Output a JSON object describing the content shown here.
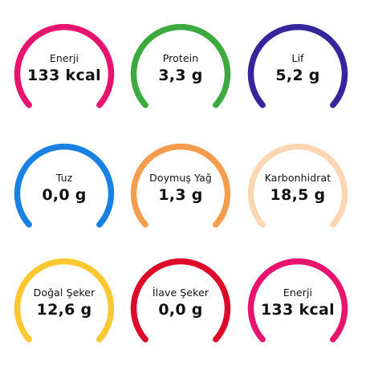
{
  "nutrients": [
    {
      "label": "Enerji",
      "value": "133 kcal",
      "color": "#e8136e"
    },
    {
      "label": "Protein",
      "value": "3,3 g",
      "color": "#3daa3f"
    },
    {
      "label": "Lif",
      "value": "5,2 g",
      "color": "#35279b"
    },
    {
      "label": "Tuz",
      "value": "0,0 g",
      "color": "#1981e2"
    },
    {
      "label": "Doymuş Yağ",
      "value": "1,3 g",
      "color": "#f59c4e"
    },
    {
      "label": "Karbonhidrat",
      "value": "18,5 g",
      "color": "#fcd6b3"
    },
    {
      "label": "Doğal Şeker",
      "value": "12,6 g",
      "color": "#fbc833"
    },
    {
      "label": "İlave Şeker",
      "value": "0,0 g",
      "color": "#dc0a28"
    },
    {
      "label": "Enerji",
      "value": "133 kcal",
      "color": "#e8136e"
    }
  ]
}
